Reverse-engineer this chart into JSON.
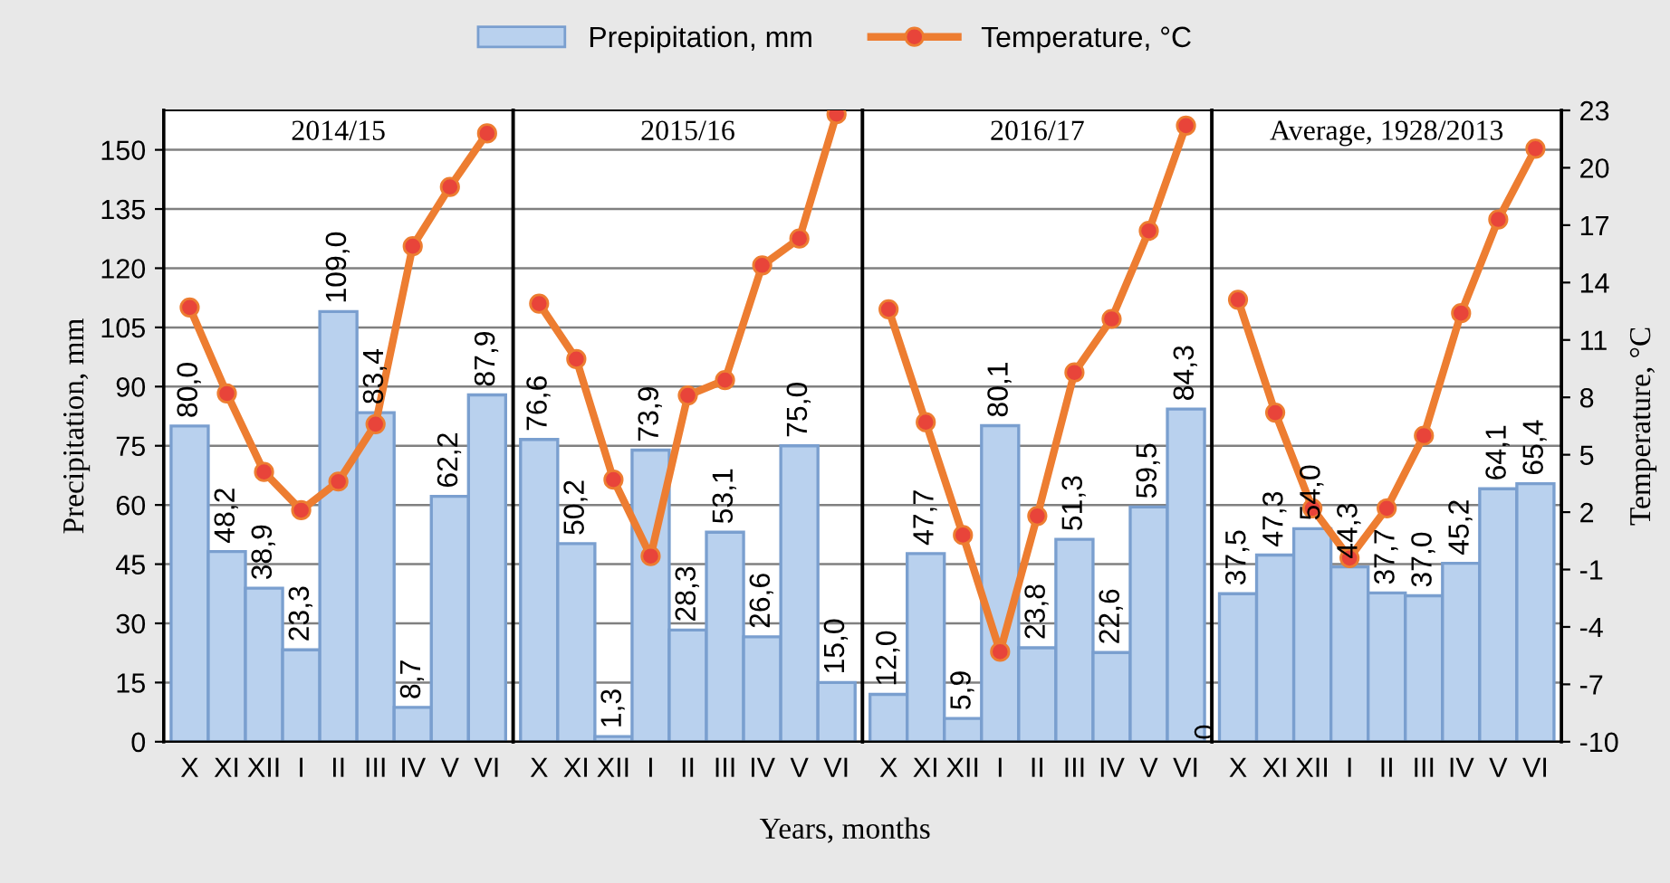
{
  "chart_data": [
    {
      "type": "bar",
      "title": "2014/15",
      "ylabel": "Precipitation, mm",
      "legend": "top",
      "grid": "y",
      "tick_labels": [
        "x",
        "y"
      ],
      "categories": [
        "X",
        "XI",
        "XII",
        "I",
        "II",
        "III",
        "IV",
        "V",
        "VI"
      ],
      "ylim": [
        0,
        160
      ],
      "yticks": [
        0,
        15,
        30,
        45,
        60,
        75,
        90,
        105,
        120,
        135,
        150
      ],
      "y2lim": [
        -10,
        23
      ],
      "series": [
        {
          "name": "Prepipitation, mm",
          "color": "#b9d1ee",
          "values": [
            80.0,
            48.2,
            38.9,
            23.3,
            109.0,
            83.4,
            8.7,
            62.2,
            87.9
          ],
          "value_labels": [
            "80,0",
            "48,2",
            "38,9",
            "23,3",
            "109,0",
            "83,4",
            "8,7",
            "62,2",
            "87,9"
          ]
        },
        {
          "name": "Temperature, °C",
          "type": "line",
          "axis": "y2",
          "color": "#ed7d31",
          "marker": "circle",
          "values": [
            12.7,
            8.2,
            4.1,
            2.1,
            3.6,
            6.6,
            15.9,
            19.0,
            21.8
          ]
        }
      ]
    },
    {
      "type": "bar",
      "title": "2015/16",
      "xlabel": "Years, months",
      "grid": "y",
      "tick_labels": [
        "x"
      ],
      "categories": [
        "X",
        "XI",
        "XII",
        "I",
        "II",
        "III",
        "IV",
        "V",
        "VI"
      ],
      "ylim": [
        0,
        160
      ],
      "y2lim": [
        -10,
        23
      ],
      "series": [
        {
          "color": "#b9d1ee",
          "values": [
            76.6,
            50.2,
            1.3,
            73.9,
            28.3,
            53.1,
            26.6,
            75.0,
            15.0
          ],
          "value_labels": [
            "76,6",
            "50,2",
            "1,3",
            "73,9",
            "28,3",
            "53,1",
            "26,6",
            "75,0",
            "15,0"
          ]
        },
        {
          "type": "line",
          "axis": "y2",
          "color": "#ed7d31",
          "marker": "circle",
          "values": [
            12.9,
            10.0,
            3.7,
            -0.3,
            8.1,
            8.9,
            14.9,
            16.3,
            22.8
          ]
        }
      ]
    },
    {
      "type": "bar",
      "title": "2016/17",
      "grid": "y",
      "tick_labels": [
        "x"
      ],
      "annotations": [
        "0"
      ],
      "categories": [
        "X",
        "XI",
        "XII",
        "I",
        "II",
        "III",
        "IV",
        "V",
        "VI"
      ],
      "ylim": [
        0,
        160
      ],
      "y2lim": [
        -10,
        23
      ],
      "series": [
        {
          "color": "#b9d1ee",
          "values": [
            12.0,
            47.7,
            5.9,
            80.1,
            23.8,
            51.3,
            22.6,
            59.5,
            84.3
          ],
          "value_labels": [
            "12,0",
            "47,7",
            "5,9",
            "80,1",
            "23,8",
            "51,3",
            "22,6",
            "59,5",
            "84,3"
          ]
        },
        {
          "type": "line",
          "axis": "y2",
          "color": "#ed7d31",
          "marker": "circle",
          "values": [
            12.6,
            6.7,
            0.8,
            -5.3,
            1.8,
            9.3,
            12.1,
            16.7,
            22.2
          ]
        }
      ]
    },
    {
      "type": "bar",
      "title": "Average, 1928/2013",
      "y2label": "Temperature, °C",
      "grid": "y",
      "tick_labels": [
        "x",
        "y2"
      ],
      "categories": [
        "X",
        "XI",
        "XII",
        "I",
        "II",
        "III",
        "IV",
        "V",
        "VI"
      ],
      "ylim": [
        0,
        160
      ],
      "y2lim": [
        -10,
        23
      ],
      "y2ticks": [
        -10,
        -7,
        -4,
        -1,
        2,
        5,
        8,
        11,
        14,
        17,
        20,
        23
      ],
      "series": [
        {
          "color": "#b9d1ee",
          "values": [
            37.5,
            47.3,
            54.0,
            44.3,
            37.7,
            37.0,
            45.2,
            64.1,
            65.4
          ],
          "value_labels": [
            "37,5",
            "47,3",
            "54,0",
            "44,3",
            "37,7",
            "37,0",
            "45,2",
            "64,1",
            "65,4"
          ]
        },
        {
          "type": "line",
          "axis": "y2",
          "color": "#ed7d31",
          "marker": "circle",
          "values": [
            13.1,
            7.2,
            2.2,
            -0.4,
            2.2,
            6.0,
            12.4,
            17.3,
            21.0
          ]
        }
      ]
    }
  ]
}
